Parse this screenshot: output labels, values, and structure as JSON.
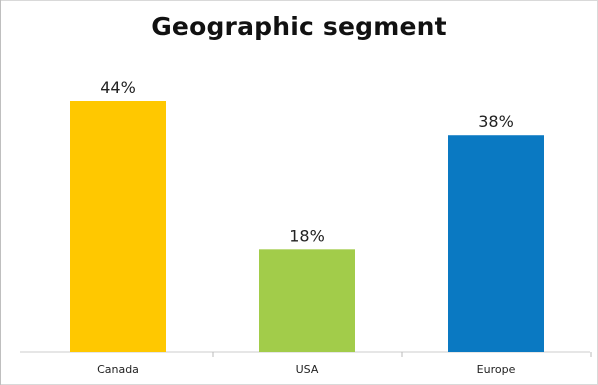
{
  "chart_data": {
    "type": "bar",
    "title": "Geographic segment",
    "categories": [
      "Canada",
      "USA",
      "Europe"
    ],
    "values": [
      44,
      18,
      38
    ],
    "value_labels": [
      "44%",
      "18%",
      "38%"
    ],
    "colors": [
      "#FFC800",
      "#A2CC4A",
      "#0A79C2"
    ],
    "ylim": [
      0,
      44
    ],
    "grid": false,
    "legend": "none",
    "xlabel": "",
    "ylabel": ""
  }
}
